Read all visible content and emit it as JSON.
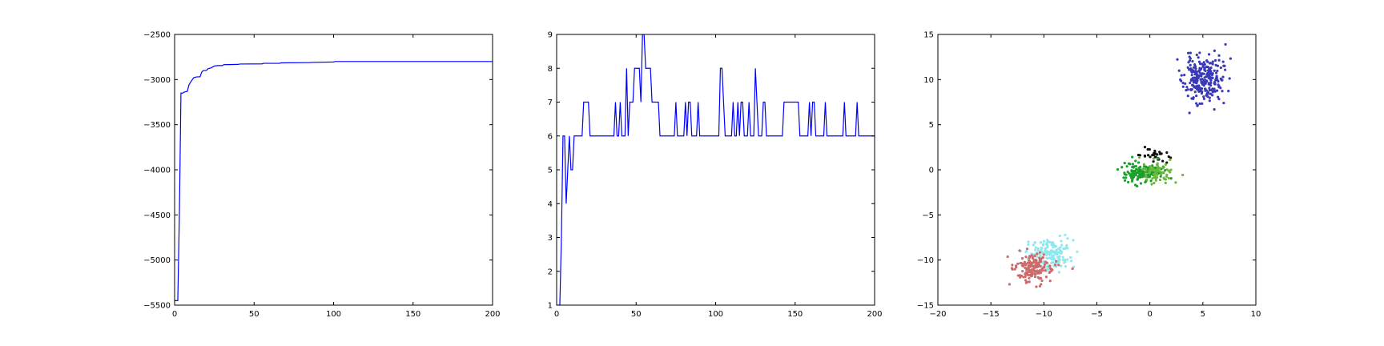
{
  "figure": {
    "panels": 3
  },
  "chart_data": [
    {
      "type": "line",
      "title": "",
      "xlabel": "",
      "ylabel": "",
      "xlim": [
        0,
        200
      ],
      "ylim": [
        -5500,
        -2500
      ],
      "xticks": [
        0,
        50,
        100,
        150,
        200
      ],
      "yticks": [
        -5500,
        -5000,
        -4500,
        -4000,
        -3500,
        -3000,
        -2500
      ],
      "grid": false,
      "series": [
        {
          "color": "#0000ff",
          "points": [
            [
              0,
              -5450
            ],
            [
              1,
              -5450
            ],
            [
              2,
              -5450
            ],
            [
              3,
              -4500
            ],
            [
              4,
              -3150
            ],
            [
              5,
              -3150
            ],
            [
              6,
              -3140
            ],
            [
              8,
              -3130
            ],
            [
              9,
              -3060
            ],
            [
              10,
              -3030
            ],
            [
              12,
              -2980
            ],
            [
              14,
              -2970
            ],
            [
              16,
              -2970
            ],
            [
              17,
              -2920
            ],
            [
              18,
              -2900
            ],
            [
              20,
              -2900
            ],
            [
              21,
              -2880
            ],
            [
              23,
              -2870
            ],
            [
              25,
              -2850
            ],
            [
              27,
              -2845
            ],
            [
              30,
              -2845
            ],
            [
              31,
              -2835
            ],
            [
              40,
              -2832
            ],
            [
              41,
              -2828
            ],
            [
              55,
              -2826
            ],
            [
              56,
              -2820
            ],
            [
              66,
              -2820
            ],
            [
              67,
              -2815
            ],
            [
              85,
              -2812
            ],
            [
              86,
              -2810
            ],
            [
              100,
              -2805
            ],
            [
              101,
              -2800
            ],
            [
              200,
              -2800
            ]
          ]
        }
      ]
    },
    {
      "type": "line",
      "title": "",
      "xlabel": "",
      "ylabel": "",
      "xlim": [
        0,
        200
      ],
      "ylim": [
        1,
        9
      ],
      "xticks": [
        0,
        50,
        100,
        150,
        200
      ],
      "yticks": [
        1,
        2,
        3,
        4,
        5,
        6,
        7,
        8,
        9
      ],
      "grid": false,
      "series": [
        {
          "color": "#0000ff",
          "points": [
            [
              0,
              1
            ],
            [
              2,
              1
            ],
            [
              3,
              3
            ],
            [
              4,
              6
            ],
            [
              5,
              6
            ],
            [
              6,
              4
            ],
            [
              7,
              5
            ],
            [
              8,
              6
            ],
            [
              9,
              5
            ],
            [
              10,
              5
            ],
            [
              11,
              6
            ],
            [
              16,
              6
            ],
            [
              17,
              7
            ],
            [
              20,
              7
            ],
            [
              21,
              6
            ],
            [
              36,
              6
            ],
            [
              37,
              7
            ],
            [
              38,
              6
            ],
            [
              39,
              6
            ],
            [
              40,
              7
            ],
            [
              41,
              6
            ],
            [
              43,
              6
            ],
            [
              44,
              8
            ],
            [
              45,
              6
            ],
            [
              46,
              7
            ],
            [
              48,
              7
            ],
            [
              49,
              8
            ],
            [
              52,
              8
            ],
            [
              53,
              7
            ],
            [
              54,
              9
            ],
            [
              55,
              9
            ],
            [
              56,
              8
            ],
            [
              59,
              8
            ],
            [
              60,
              7
            ],
            [
              64,
              7
            ],
            [
              65,
              6
            ],
            [
              74,
              6
            ],
            [
              75,
              7
            ],
            [
              76,
              6
            ],
            [
              80,
              6
            ],
            [
              81,
              7
            ],
            [
              82,
              6
            ],
            [
              83,
              7
            ],
            [
              84,
              7
            ],
            [
              85,
              6
            ],
            [
              88,
              6
            ],
            [
              89,
              7
            ],
            [
              90,
              6
            ],
            [
              102,
              6
            ],
            [
              103,
              8
            ],
            [
              104,
              8
            ],
            [
              105,
              7
            ],
            [
              106,
              6
            ],
            [
              110,
              6
            ],
            [
              111,
              7
            ],
            [
              112,
              6
            ],
            [
              113,
              6
            ],
            [
              114,
              7
            ],
            [
              115,
              6
            ],
            [
              116,
              7
            ],
            [
              117,
              7
            ],
            [
              118,
              6
            ],
            [
              120,
              6
            ],
            [
              121,
              7
            ],
            [
              122,
              6
            ],
            [
              124,
              6
            ],
            [
              125,
              8
            ],
            [
              126,
              7
            ],
            [
              127,
              6
            ],
            [
              129,
              6
            ],
            [
              130,
              7
            ],
            [
              131,
              7
            ],
            [
              132,
              6
            ],
            [
              142,
              6
            ],
            [
              143,
              7
            ],
            [
              152,
              7
            ],
            [
              153,
              6
            ],
            [
              158,
              6
            ],
            [
              159,
              7
            ],
            [
              160,
              6
            ],
            [
              161,
              7
            ],
            [
              162,
              7
            ],
            [
              163,
              6
            ],
            [
              168,
              6
            ],
            [
              169,
              7
            ],
            [
              170,
              6
            ],
            [
              180,
              6
            ],
            [
              181,
              7
            ],
            [
              182,
              6
            ],
            [
              188,
              6
            ],
            [
              189,
              7
            ],
            [
              190,
              6
            ],
            [
              200,
              6
            ]
          ]
        }
      ]
    },
    {
      "type": "scatter",
      "title": "",
      "xlabel": "",
      "ylabel": "",
      "xlim": [
        -20,
        10
      ],
      "ylim": [
        -15,
        15
      ],
      "xticks": [
        -20,
        -15,
        -10,
        -5,
        0,
        5,
        10
      ],
      "yticks": [
        -15,
        -10,
        -5,
        0,
        5,
        10,
        15
      ],
      "grid": false,
      "clusters": [
        {
          "color": "#3a3ab8",
          "center": [
            5,
            10
          ],
          "spread": [
            0.9,
            1.3
          ],
          "count": 260,
          "seed": 11
        },
        {
          "color": "#101010",
          "center": [
            0.2,
            1.6
          ],
          "spread": [
            0.8,
            0.45
          ],
          "count": 30,
          "seed": 23
        },
        {
          "color": "#1aa02a",
          "center": [
            -0.6,
            -0.3
          ],
          "spread": [
            0.9,
            0.55
          ],
          "count": 150,
          "seed": 37
        },
        {
          "color": "#6bb83a",
          "center": [
            0.8,
            -0.3
          ],
          "spread": [
            0.7,
            0.6
          ],
          "count": 70,
          "seed": 41
        },
        {
          "color": "#8fe8ee",
          "center": [
            -9.5,
            -9.4
          ],
          "spread": [
            1.0,
            0.9
          ],
          "count": 170,
          "seed": 53
        },
        {
          "color": "#cd6a6a",
          "center": [
            -11,
            -10.8
          ],
          "spread": [
            0.9,
            0.8
          ],
          "count": 170,
          "seed": 67
        }
      ]
    }
  ]
}
